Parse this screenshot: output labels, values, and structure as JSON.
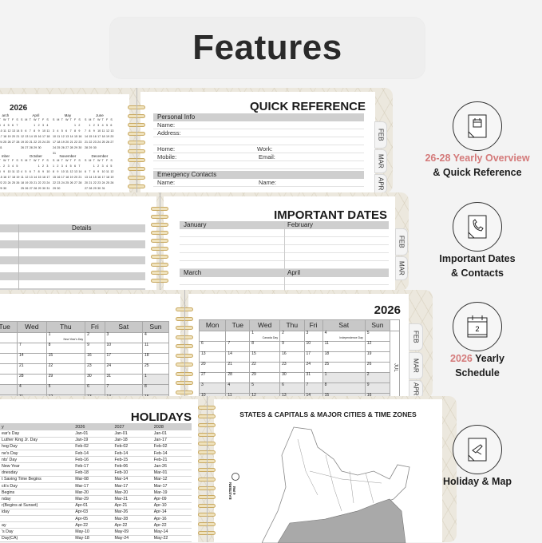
{
  "header": {
    "title": "Features"
  },
  "colors": {
    "accent": "#d47a7a",
    "ring": "#c9a961",
    "bar": "#cfcfcf"
  },
  "tabs": [
    "FEB",
    "MAR",
    "APR"
  ],
  "page1": {
    "year": "2026",
    "mini_months": [
      {
        "name": "arch",
        "first_weekday": 0,
        "days": 31
      },
      {
        "name": "April",
        "first_weekday": 3,
        "days": 30
      },
      {
        "name": "May",
        "first_weekday": 5,
        "days": 31
      },
      {
        "name": "June",
        "first_weekday": 1,
        "days": 30
      },
      {
        "name": "mber",
        "first_weekday": 2,
        "days": 30
      },
      {
        "name": "October",
        "first_weekday": 4,
        "days": 31
      },
      {
        "name": "November",
        "first_weekday": 0,
        "days": 30
      },
      {
        "name": "December",
        "first_weekday": 2,
        "days": 31
      }
    ],
    "weekday_initials": [
      "S",
      "M",
      "T",
      "W",
      "T",
      "F",
      "S"
    ],
    "quick_reference": {
      "title": "QUICK REFERENCE",
      "personal_info": "Personal Info",
      "name": "Name:",
      "address": "Address:",
      "home": "Home:",
      "work": "Work:",
      "mobile": "Mobile:",
      "email": "Email:",
      "emergency": "Emergency Contacts",
      "name2a": "Name:",
      "name2b": "Name:"
    }
  },
  "page2": {
    "details": "Details",
    "title": "IMPORTANT DATES",
    "months": [
      "January",
      "February",
      "March",
      "April"
    ]
  },
  "page3": {
    "left": {
      "headers": [
        "",
        "Tue",
        "Wed",
        "Thu",
        "Fri",
        "Sat",
        "Sun"
      ],
      "rows": [
        [
          {
            "d": ""
          },
          {
            "d": ""
          },
          {
            "d": ""
          },
          {
            "d": "1",
            "n": "New Year's Day"
          },
          {
            "d": "2"
          },
          {
            "d": "3"
          },
          {
            "d": "4"
          }
        ],
        [
          {
            "d": "5"
          },
          {
            "d": "6"
          },
          {
            "d": "7"
          },
          {
            "d": "8"
          },
          {
            "d": "9"
          },
          {
            "d": "10"
          },
          {
            "d": "11"
          }
        ],
        [
          {
            "d": "12"
          },
          {
            "d": "13"
          },
          {
            "d": "14"
          },
          {
            "d": "15"
          },
          {
            "d": "16"
          },
          {
            "d": "17"
          },
          {
            "d": "18"
          }
        ],
        [
          {
            "d": "19"
          },
          {
            "d": "20"
          },
          {
            "d": "21"
          },
          {
            "d": "22"
          },
          {
            "d": "23"
          },
          {
            "d": "24"
          },
          {
            "d": "25"
          }
        ],
        [
          {
            "d": "26"
          },
          {
            "d": "27"
          },
          {
            "d": "28"
          },
          {
            "d": "29"
          },
          {
            "d": "30"
          },
          {
            "d": "31"
          },
          {
            "d": "1",
            "g": true
          }
        ],
        [
          {
            "d": "2",
            "g": true
          },
          {
            "d": "3",
            "g": true
          },
          {
            "d": "4",
            "g": true
          },
          {
            "d": "5",
            "g": true
          },
          {
            "d": "6",
            "g": true
          },
          {
            "d": "7",
            "g": true
          },
          {
            "d": "8",
            "g": true
          }
        ],
        [
          {
            "d": "9",
            "g": true
          },
          {
            "d": "10",
            "g": true
          },
          {
            "d": "11",
            "g": true
          },
          {
            "d": "12",
            "g": true
          },
          {
            "d": "13",
            "g": true
          },
          {
            "d": "14",
            "g": true,
            "n": "Valentine's Day"
          },
          {
            "d": "15",
            "g": true
          }
        ]
      ]
    },
    "right": {
      "year": "2026",
      "month_label": "JUL",
      "headers": [
        "Mon",
        "Tue",
        "Wed",
        "Thu",
        "Fri",
        "Sat",
        "Sun"
      ],
      "rows": [
        [
          {
            "d": ""
          },
          {
            "d": ""
          },
          {
            "d": "1",
            "n": "Canada Day"
          },
          {
            "d": "2"
          },
          {
            "d": "3"
          },
          {
            "d": "4",
            "n": "Independence Day"
          },
          {
            "d": "5"
          }
        ],
        [
          {
            "d": "6"
          },
          {
            "d": "7"
          },
          {
            "d": "8"
          },
          {
            "d": "9"
          },
          {
            "d": "10"
          },
          {
            "d": "11"
          },
          {
            "d": "12"
          }
        ],
        [
          {
            "d": "13"
          },
          {
            "d": "14"
          },
          {
            "d": "15"
          },
          {
            "d": "16"
          },
          {
            "d": "17"
          },
          {
            "d": "18"
          },
          {
            "d": "19"
          }
        ],
        [
          {
            "d": "20"
          },
          {
            "d": "21"
          },
          {
            "d": "22"
          },
          {
            "d": "23"
          },
          {
            "d": "24"
          },
          {
            "d": "25"
          },
          {
            "d": "26"
          }
        ],
        [
          {
            "d": "27"
          },
          {
            "d": "28"
          },
          {
            "d": "29"
          },
          {
            "d": "30"
          },
          {
            "d": "31"
          },
          {
            "d": "1",
            "g": true
          },
          {
            "d": "2",
            "g": true
          }
        ],
        [
          {
            "d": "3",
            "g": true
          },
          {
            "d": "4",
            "g": true
          },
          {
            "d": "5",
            "g": true
          },
          {
            "d": "6",
            "g": true
          },
          {
            "d": "7",
            "g": true
          },
          {
            "d": "8",
            "g": true
          },
          {
            "d": "9",
            "g": true
          }
        ],
        [
          {
            "d": "10",
            "g": true
          },
          {
            "d": "11",
            "g": true
          },
          {
            "d": "12",
            "g": true
          },
          {
            "d": "13",
            "g": true
          },
          {
            "d": "14",
            "g": true
          },
          {
            "d": "15",
            "g": true
          },
          {
            "d": "16",
            "g": true
          }
        ]
      ]
    }
  },
  "page4": {
    "holidays_title": "HOLIDAYS",
    "columns": [
      "y",
      "2026",
      "2027",
      "2028"
    ],
    "rows": [
      [
        "ear's Day",
        "Jan-01",
        "Jan-01",
        "Jan-01"
      ],
      [
        "Luther King Jr. Day",
        "Jan-19",
        "Jan-18",
        "Jan-17"
      ],
      [
        "hog Day",
        "Feb-02",
        "Feb-02",
        "Feb-02"
      ],
      [
        "ne's Day",
        "Feb-14",
        "Feb-14",
        "Feb-14"
      ],
      [
        "nts' Day",
        "Feb-16",
        "Feb-15",
        "Feb-21"
      ],
      [
        "New Year",
        "Feb-17",
        "Feb-06",
        "Jan-26"
      ],
      [
        "dnesday",
        "Feb-18",
        "Feb-10",
        "Mar-01"
      ],
      [
        "t Saving Time Begins",
        "Mar-08",
        "Mar-14",
        "Mar-12"
      ],
      [
        "ck's Day",
        "Mar-17",
        "Mar-17",
        "Mar-17"
      ],
      [
        "Begins",
        "Mar-20",
        "Mar-20",
        "Mar-19"
      ],
      [
        "nday",
        "Mar-29",
        "Mar-21",
        "Apr-09"
      ],
      [
        "r(Begins at Sunset)",
        "Apr-01",
        "Apr-21",
        "Apr-10"
      ],
      [
        "iday",
        "Apr-03",
        "Mar-26",
        "Apr-14"
      ],
      [
        "",
        "Apr-05",
        "Mar-28",
        "Apr-16"
      ],
      [
        "ay",
        "Apr-22",
        "Apr-22",
        "Apr-22"
      ],
      [
        "'s Day",
        "May-10",
        "May-09",
        "May-14"
      ],
      [
        " Day(CA)",
        "May-18",
        "May-24",
        "May-22"
      ]
    ],
    "map_title": "STATES & CAPITALS & MAJOR CITIES & TIME ZONES",
    "timezone_label": "EASTERN",
    "timezone_time": "6 PM"
  },
  "features": [
    {
      "icon": "notepad-icon",
      "accent": "26-28 Yearly Overview",
      "text": "& Quick Reference"
    },
    {
      "icon": "phone-icon",
      "accent": "",
      "text": "Important Dates & Contacts"
    },
    {
      "icon": "calendar-icon",
      "accent": "2026",
      "text": "Yearly Schedule"
    },
    {
      "icon": "map-plane-icon",
      "accent": "",
      "text": "Holiday & Map"
    }
  ]
}
